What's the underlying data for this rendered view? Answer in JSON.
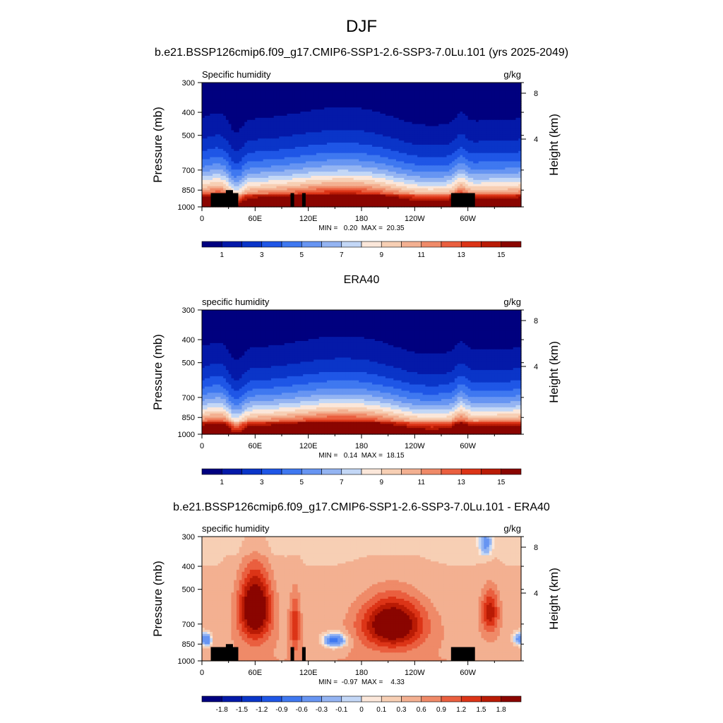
{
  "figure": {
    "title": "DJF",
    "model_subtitle": "b.e21.BSSP126cmip6.f09_g17.CMIP6-SSP1-2.6-SSP3-7.0Lu.101 (yrs 2025-2049)",
    "obs_subtitle": "ERA40",
    "diff_subtitle": "b.e21.BSSP126cmip6.f09_g17.CMIP6-SSP1-2.6-SSP3-7.0Lu.101 - ERA40"
  },
  "chart_data": [
    {
      "type": "heatmap",
      "variable": "Specific humidity",
      "units": "g/kg",
      "ylabel": "Pressure (mb)",
      "y2label": "Height (km)",
      "x_ticks": [
        "0",
        "60E",
        "120E",
        "180",
        "120W",
        "60W"
      ],
      "x_tick_values": [
        0,
        60,
        120,
        180,
        240,
        300
      ],
      "xlim": [
        0,
        360
      ],
      "y_ticks": [
        300,
        400,
        500,
        700,
        850,
        1000
      ],
      "ylim": [
        1000,
        300
      ],
      "y_scale": "log",
      "y2_ticks": [
        8,
        4
      ],
      "stats": "MIN =   0.20  MAX =  20.35",
      "min": 0.2,
      "max": 20.35,
      "colorbar_levels": [
        0,
        1,
        2,
        3,
        4,
        5,
        6,
        7,
        8,
        9,
        10,
        11,
        12,
        13,
        14,
        15,
        16
      ],
      "colorbar_labels": [
        "1",
        "3",
        "5",
        "7",
        "9",
        "11",
        "13",
        "15"
      ],
      "terrain": "black blocks near surface at ~10-40, ~100-105, ~112-116 and ~282-310 degrees longitude"
    },
    {
      "type": "heatmap",
      "variable": "specific humidity",
      "units": "g/kg",
      "ylabel": "Pressure (mb)",
      "y2label": "Height (km)",
      "x_ticks": [
        "0",
        "60E",
        "120E",
        "180",
        "120W",
        "60W"
      ],
      "x_tick_values": [
        0,
        60,
        120,
        180,
        240,
        300
      ],
      "xlim": [
        0,
        360
      ],
      "y_ticks": [
        300,
        400,
        500,
        700,
        850,
        1000
      ],
      "ylim": [
        1000,
        300
      ],
      "y_scale": "log",
      "y2_ticks": [
        8,
        4
      ],
      "stats": "MIN =   0.14  MAX =  18.15",
      "min": 0.14,
      "max": 18.15,
      "colorbar_levels": [
        0,
        1,
        2,
        3,
        4,
        5,
        6,
        7,
        8,
        9,
        10,
        11,
        12,
        13,
        14,
        15,
        16
      ],
      "colorbar_labels": [
        "1",
        "3",
        "5",
        "7",
        "9",
        "11",
        "13",
        "15"
      ]
    },
    {
      "type": "heatmap",
      "variable": "specific humidity",
      "units": "g/kg",
      "ylabel": "Pressure (mb)",
      "y2label": "Height (km)",
      "x_ticks": [
        "0",
        "60E",
        "120E",
        "180",
        "120W",
        "60W"
      ],
      "x_tick_values": [
        0,
        60,
        120,
        180,
        240,
        300
      ],
      "xlim": [
        0,
        360
      ],
      "y_ticks": [
        300,
        400,
        500,
        700,
        850,
        1000
      ],
      "ylim": [
        1000,
        300
      ],
      "y_scale": "log",
      "y2_ticks": [
        8,
        4
      ],
      "stats": "MIN =  -0.97  MAX =    4.33",
      "min": -0.97,
      "max": 4.33,
      "colorbar_labels": [
        "-1.8",
        "-1.5",
        "-1.2",
        "-0.9",
        "-0.6",
        "-0.3",
        "-0.1",
        "0",
        "0.1",
        "0.3",
        "0.6",
        "0.9",
        "1.2",
        "1.5",
        "1.8"
      ]
    }
  ],
  "colors": {
    "abs_palette": [
      "#00007f",
      "#0419a8",
      "#0a35c8",
      "#1f56e6",
      "#3f78f0",
      "#6795f2",
      "#94b4f2",
      "#c3d7f6",
      "#fbe7da",
      "#f7cfb4",
      "#f3b091",
      "#ef8a68",
      "#ea5f3f",
      "#dc3417",
      "#b91b05",
      "#8a0500"
    ],
    "diff_palette": [
      "#00007f",
      "#0419a8",
      "#0a35c8",
      "#1f56e6",
      "#3f78f0",
      "#6795f2",
      "#94b4f2",
      "#c3d7f6",
      "#fbe7da",
      "#f7cfb4",
      "#f3b091",
      "#ef8a68",
      "#ea5f3f",
      "#dc3417",
      "#b91b05",
      "#8a0500"
    ],
    "terrain": "#000000"
  }
}
